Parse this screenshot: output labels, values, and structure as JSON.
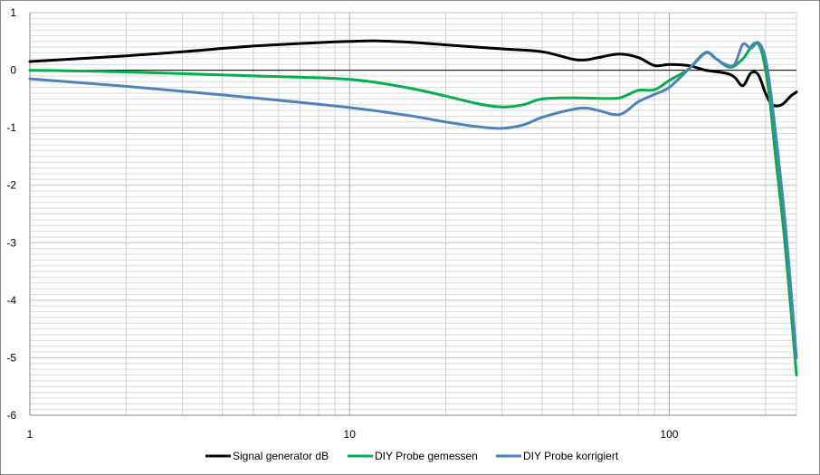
{
  "chart_data": {
    "type": "line",
    "title": "",
    "xlabel": "",
    "ylabel": "",
    "x_scale": "log",
    "xlim": [
      1,
      250
    ],
    "ylim": [
      -6,
      1
    ],
    "grid": true,
    "legend_position": "bottom",
    "x_tick_labels": [
      "1",
      "10",
      "100"
    ],
    "y_tick_labels": [
      "1",
      "0",
      "-1",
      "-2",
      "-3",
      "-4",
      "-5",
      "-6"
    ],
    "series": [
      {
        "name": "Signal generator dB",
        "color": "#000000",
        "points": [
          [
            1,
            0.15
          ],
          [
            2,
            0.25
          ],
          [
            3,
            0.32
          ],
          [
            5,
            0.42
          ],
          [
            8,
            0.48
          ],
          [
            10,
            0.5
          ],
          [
            12,
            0.51
          ],
          [
            15,
            0.49
          ],
          [
            20,
            0.44
          ],
          [
            30,
            0.37
          ],
          [
            40,
            0.32
          ],
          [
            50,
            0.19
          ],
          [
            55,
            0.18
          ],
          [
            60,
            0.22
          ],
          [
            70,
            0.28
          ],
          [
            80,
            0.22
          ],
          [
            90,
            0.08
          ],
          [
            100,
            0.1
          ],
          [
            115,
            0.08
          ],
          [
            130,
            0.0
          ],
          [
            150,
            -0.05
          ],
          [
            160,
            -0.12
          ],
          [
            170,
            -0.27
          ],
          [
            180,
            -0.05
          ],
          [
            190,
            -0.08
          ],
          [
            200,
            -0.4
          ],
          [
            210,
            -0.6
          ],
          [
            225,
            -0.6
          ],
          [
            240,
            -0.45
          ],
          [
            250,
            -0.38
          ]
        ]
      },
      {
        "name": "DIY Probe gemessen",
        "color": "#00b050",
        "points": [
          [
            1,
            0.0
          ],
          [
            2,
            -0.03
          ],
          [
            5,
            -0.1
          ],
          [
            10,
            -0.16
          ],
          [
            15,
            -0.3
          ],
          [
            20,
            -0.45
          ],
          [
            25,
            -0.58
          ],
          [
            30,
            -0.64
          ],
          [
            35,
            -0.6
          ],
          [
            40,
            -0.5
          ],
          [
            50,
            -0.48
          ],
          [
            60,
            -0.49
          ],
          [
            70,
            -0.48
          ],
          [
            80,
            -0.35
          ],
          [
            90,
            -0.34
          ],
          [
            100,
            -0.18
          ],
          [
            115,
            0.02
          ],
          [
            130,
            0.3
          ],
          [
            140,
            0.2
          ],
          [
            155,
            0.05
          ],
          [
            170,
            0.2
          ],
          [
            185,
            0.47
          ],
          [
            195,
            0.3
          ],
          [
            205,
            -0.4
          ],
          [
            215,
            -1.5
          ],
          [
            230,
            -3.0
          ],
          [
            250,
            -5.3
          ]
        ]
      },
      {
        "name": "DIY Probe korrigiert",
        "color": "#4f81bd",
        "points": [
          [
            1,
            -0.15
          ],
          [
            2,
            -0.28
          ],
          [
            5,
            -0.48
          ],
          [
            10,
            -0.65
          ],
          [
            15,
            -0.78
          ],
          [
            20,
            -0.9
          ],
          [
            25,
            -0.98
          ],
          [
            30,
            -1.01
          ],
          [
            35,
            -0.95
          ],
          [
            40,
            -0.82
          ],
          [
            50,
            -0.68
          ],
          [
            55,
            -0.66
          ],
          [
            60,
            -0.7
          ],
          [
            70,
            -0.77
          ],
          [
            80,
            -0.55
          ],
          [
            90,
            -0.42
          ],
          [
            100,
            -0.3
          ],
          [
            115,
            0.02
          ],
          [
            130,
            0.31
          ],
          [
            140,
            0.2
          ],
          [
            150,
            0.1
          ],
          [
            160,
            0.1
          ],
          [
            170,
            0.45
          ],
          [
            180,
            0.38
          ],
          [
            190,
            0.48
          ],
          [
            200,
            0.2
          ],
          [
            210,
            -0.6
          ],
          [
            230,
            -2.6
          ],
          [
            250,
            -5.0
          ]
        ]
      }
    ]
  }
}
